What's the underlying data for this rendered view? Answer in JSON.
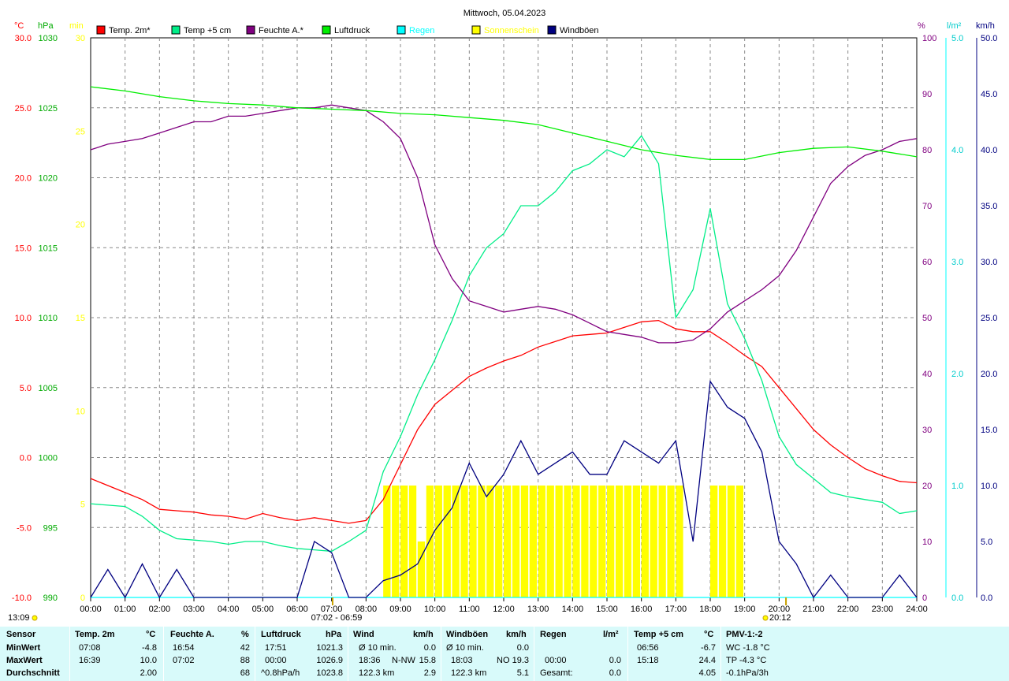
{
  "title": "Mittwoch, 05.04.2023",
  "legend": [
    {
      "label": "Temp. 2m*",
      "color": "#ff0000"
    },
    {
      "label": "Temp +5 cm",
      "color": "#00ee88"
    },
    {
      "label": "Feuchte A.*",
      "color": "#800080"
    },
    {
      "label": "Luftdruck",
      "color": "#00ee00"
    },
    {
      "label": "Regen",
      "color": "#00ffff"
    },
    {
      "label": "Sonnenschein",
      "color": "#ffff00"
    },
    {
      "label": "Windböen",
      "color": "#000080"
    }
  ],
  "axes": {
    "temp": {
      "unit": "°C",
      "color": "#ff0000",
      "ticks": [
        "30.0",
        "25.0",
        "20.0",
        "15.0",
        "10.0",
        "5.0",
        "0.0",
        "-5.0",
        "-10.0"
      ]
    },
    "pressure": {
      "unit": "hPa",
      "color": "#00aa00",
      "ticks": [
        "1030",
        "1025",
        "1020",
        "1015",
        "1010",
        "1005",
        "1000",
        "995",
        "990"
      ]
    },
    "sun": {
      "unit": "min",
      "color": "#ffff00",
      "ticks": [
        "30",
        "25",
        "20",
        "15",
        "10",
        "5",
        "0"
      ]
    },
    "humidity": {
      "unit": "%",
      "color": "#800080",
      "ticks": [
        "100",
        "90",
        "80",
        "70",
        "60",
        "50",
        "40",
        "30",
        "20",
        "10",
        "0"
      ]
    },
    "rain": {
      "unit": "l/m²",
      "color": "#00ffff",
      "ticks": [
        "5.0",
        "4.0",
        "3.0",
        "2.0",
        "1.0",
        "0.0"
      ]
    },
    "wind": {
      "unit": "km/h",
      "color": "#000080",
      "ticks": [
        "50.0",
        "45.0",
        "40.0",
        "35.0",
        "30.0",
        "25.0",
        "20.0",
        "15.0",
        "10.0",
        "5.0",
        "0.0"
      ]
    }
  },
  "x_ticks": [
    "00:00",
    "01:00",
    "02:00",
    "03:00",
    "04:00",
    "05:00",
    "06:00",
    "07:00",
    "08:00",
    "09:00",
    "10:00",
    "11:00",
    "12:00",
    "13:00",
    "14:00",
    "15:00",
    "16:00",
    "17:00",
    "18:00",
    "19:00",
    "20:00",
    "21:00",
    "22:00",
    "23:00",
    "24:00"
  ],
  "markers": {
    "day_length": "13:09",
    "sunrise_sunset": "07:02 - 06:59",
    "sunset_time": "20:12"
  },
  "chart_data": {
    "type": "line",
    "title": "Mittwoch, 05.04.2023",
    "x_unit": "hours",
    "series": [
      {
        "name": "Temp. 2m*",
        "unit": "°C",
        "ylim": [
          -10,
          30
        ],
        "color": "#ff0000",
        "x": [
          0,
          0.5,
          1,
          1.5,
          2,
          2.5,
          3,
          3.5,
          4,
          4.5,
          5,
          5.5,
          6,
          6.5,
          7,
          7.5,
          8,
          8.5,
          9,
          9.5,
          10,
          10.5,
          11,
          11.5,
          12,
          12.5,
          13,
          13.5,
          14,
          14.5,
          15,
          15.5,
          16,
          16.5,
          17,
          17.5,
          18,
          18.5,
          19,
          19.5,
          20,
          20.5,
          21,
          21.5,
          22,
          22.5,
          23,
          23.5,
          24
        ],
        "y": [
          -1.5,
          -2.0,
          -2.5,
          -3.0,
          -3.7,
          -3.8,
          -3.9,
          -4.1,
          -4.2,
          -4.4,
          -4.0,
          -4.3,
          -4.5,
          -4.3,
          -4.5,
          -4.7,
          -4.5,
          -3.0,
          -0.5,
          2.0,
          3.8,
          4.8,
          5.8,
          6.4,
          6.9,
          7.3,
          7.9,
          8.3,
          8.7,
          8.8,
          8.9,
          9.3,
          9.7,
          9.8,
          9.2,
          9.0,
          9.0,
          8.2,
          7.3,
          6.5,
          5.0,
          3.5,
          2.0,
          0.9,
          0.0,
          -0.8,
          -1.3,
          -1.7,
          -1.8
        ]
      },
      {
        "name": "Temp +5 cm",
        "unit": "°C",
        "ylim": [
          -10,
          30
        ],
        "color": "#00ee88",
        "x": [
          0,
          0.5,
          1,
          1.5,
          2,
          2.5,
          3,
          3.5,
          4,
          4.5,
          5,
          5.5,
          6,
          6.5,
          7,
          7.5,
          8,
          8.5,
          9,
          9.5,
          10,
          10.5,
          11,
          11.5,
          12,
          12.5,
          13,
          13.5,
          14,
          14.5,
          15,
          15.5,
          16,
          16.5,
          17,
          17.5,
          18,
          18.5,
          19,
          19.5,
          20,
          20.5,
          21,
          21.5,
          22,
          22.5,
          23,
          23.5,
          24
        ],
        "y": [
          -3.3,
          -3.4,
          -3.5,
          -4.2,
          -5.2,
          -5.8,
          -5.9,
          -6.0,
          -6.2,
          -6.0,
          -6.0,
          -6.3,
          -6.5,
          -6.6,
          -6.7,
          -6.0,
          -5.2,
          -1.0,
          1.5,
          4.5,
          7.0,
          9.8,
          13.0,
          15.0,
          16.0,
          18.0,
          18.0,
          19.0,
          20.5,
          21.0,
          22.0,
          21.5,
          23.0,
          21.0,
          10.0,
          12.0,
          17.8,
          11.0,
          8.5,
          5.5,
          1.5,
          -0.5,
          -1.5,
          -2.5,
          -2.8,
          -3.0,
          -3.2,
          -4.0,
          -3.8
        ]
      },
      {
        "name": "Feuchte A.*",
        "unit": "%",
        "ylim": [
          0,
          100
        ],
        "color": "#800080",
        "x": [
          0,
          0.5,
          1,
          1.5,
          2,
          2.5,
          3,
          3.5,
          4,
          4.5,
          5,
          5.5,
          6,
          6.5,
          7,
          7.5,
          8,
          8.5,
          9,
          9.5,
          10,
          10.5,
          11,
          11.5,
          12,
          12.5,
          13,
          13.5,
          14,
          14.5,
          15,
          15.5,
          16,
          16.5,
          17,
          17.5,
          18,
          18.5,
          19,
          19.5,
          20,
          20.5,
          21,
          21.5,
          22,
          22.5,
          23,
          23.5,
          24
        ],
        "y": [
          80,
          81,
          81.5,
          82,
          83,
          84,
          85,
          85,
          86,
          86,
          86.5,
          87,
          87.5,
          87.5,
          88,
          87.5,
          87,
          85,
          82,
          75,
          63,
          57,
          53,
          52,
          51,
          51.5,
          52,
          51.5,
          50.5,
          49,
          47.5,
          47,
          46.5,
          45.5,
          45.5,
          46,
          48,
          51,
          53,
          55,
          57.5,
          62,
          68,
          74,
          77,
          79,
          80,
          81.5,
          82
        ]
      },
      {
        "name": "Luftdruck",
        "unit": "hPa",
        "ylim": [
          990,
          1030
        ],
        "color": "#00ee00",
        "x": [
          0,
          1,
          2,
          3,
          4,
          5,
          6,
          7,
          8,
          9,
          10,
          11,
          12,
          13,
          14,
          15,
          16,
          17,
          18,
          19,
          20,
          21,
          22,
          23,
          24
        ],
        "y": [
          1026.5,
          1026.2,
          1025.8,
          1025.5,
          1025.3,
          1025.2,
          1025.0,
          1024.9,
          1024.8,
          1024.6,
          1024.5,
          1024.3,
          1024.1,
          1023.8,
          1023.2,
          1022.6,
          1022.0,
          1021.6,
          1021.3,
          1021.3,
          1021.8,
          1022.1,
          1022.2,
          1021.9,
          1021.5
        ]
      },
      {
        "name": "Regen",
        "unit": "l/m²",
        "ylim": [
          0,
          5
        ],
        "color": "#00ffff",
        "x": [
          0,
          24
        ],
        "y": [
          0,
          0
        ]
      },
      {
        "name": "Windböen",
        "unit": "km/h",
        "ylim": [
          0,
          50
        ],
        "color": "#000080",
        "x": [
          0,
          0.5,
          1,
          1.5,
          2,
          2.5,
          3,
          3.5,
          4,
          4.5,
          5,
          5.5,
          6,
          6.5,
          7,
          7.5,
          8,
          8.5,
          9,
          9.5,
          10,
          10.5,
          11,
          11.5,
          12,
          12.5,
          13,
          13.5,
          14,
          14.5,
          15,
          15.5,
          16,
          16.5,
          17,
          17.5,
          18,
          18.5,
          19,
          19.5,
          20,
          20.5,
          21,
          21.5,
          22,
          22.5,
          23,
          23.5,
          24
        ],
        "y": [
          0,
          2.5,
          0,
          3,
          0,
          2.5,
          0,
          0,
          0,
          0,
          0,
          0,
          0,
          5,
          4,
          0,
          0,
          1.5,
          2,
          3,
          6,
          8,
          12,
          9,
          11,
          14,
          11,
          12,
          13,
          11,
          11,
          14,
          13,
          12,
          14,
          5,
          19.3,
          17,
          16,
          13,
          5,
          3,
          0,
          2,
          0,
          0,
          0,
          2,
          0
        ]
      },
      {
        "name": "Sonnenschein",
        "unit": "min",
        "type": "bar",
        "ylim": [
          0,
          30
        ],
        "color": "#ffff00",
        "x": [
          8.5,
          8.75,
          9,
          9.25,
          9.5,
          9.75,
          10,
          10.25,
          10.5,
          10.75,
          11,
          11.25,
          11.5,
          11.75,
          12,
          12.25,
          12.5,
          12.75,
          13,
          13.25,
          13.5,
          13.75,
          14,
          14.25,
          14.5,
          14.75,
          15,
          15.25,
          15.5,
          15.75,
          16,
          16.25,
          16.5,
          16.75,
          17,
          17.25,
          17.5,
          17.75,
          18,
          18.25,
          18.5,
          18.75
        ],
        "y": [
          6,
          6,
          6,
          6,
          3,
          6,
          6,
          6,
          6,
          6,
          6,
          6,
          6,
          6,
          6,
          6,
          6,
          6,
          6,
          6,
          6,
          6,
          6,
          6,
          6,
          6,
          6,
          6,
          6,
          6,
          6,
          6,
          6,
          6,
          6,
          0,
          0,
          0,
          6,
          6,
          6,
          6
        ]
      }
    ]
  },
  "stats": {
    "header": {
      "sensor": "Sensor",
      "temp": "Temp. 2m",
      "temp_unit": "°C",
      "hum": "Feuchte A.",
      "hum_unit": "%",
      "press": "Luftdruck",
      "press_unit": "hPa",
      "wind": "Wind",
      "wind_unit": "km/h",
      "gust": "Windböen",
      "gust_unit": "km/h",
      "rain": "Regen",
      "rain_unit": "l/m²",
      "t5": "Temp +5 cm",
      "t5_unit": "°C",
      "pmv": "PMV-1:-2"
    },
    "rows": [
      {
        "label": "MinWert",
        "temp_t": "07:08",
        "temp_v": "-4.8",
        "hum_t": "16:54",
        "hum_v": "42",
        "press_t": "17:51",
        "press_v": "1021.3",
        "wind_t": "Ø 10 min.",
        "wind_v": "0.0",
        "gust_t": "Ø 10 min.",
        "gust_v": "0.0",
        "rain_t": "",
        "rain_v": "",
        "t5_t": "06:56",
        "t5_v": "-6.7",
        "pmv": "WC -1.8 °C"
      },
      {
        "label": "MaxWert",
        "temp_t": "16:39",
        "temp_v": "10.0",
        "hum_t": "07:02",
        "hum_v": "88",
        "press_t": "00:00",
        "press_v": "1026.9",
        "wind_t": "18:36",
        "wind_dir": "N-NW",
        "wind_v": "15.8",
        "gust_t": "18:03",
        "gust_dir": "NO",
        "gust_v": "19.3",
        "rain_t": "00:00",
        "rain_v": "0.0",
        "t5_t": "15:18",
        "t5_v": "24.4",
        "pmv": "TP -4.3 °C"
      },
      {
        "label": "Durchschnitt",
        "temp_t": "",
        "temp_v": "2.00",
        "hum_t": "",
        "hum_v": "68",
        "press_t": "^0.8hPa/h",
        "press_v": "1023.8",
        "wind_t": "122.3 km",
        "wind_v": "2.9",
        "gust_t": "122.3 km",
        "gust_v": "5.1",
        "rain_t": "Gesamt:",
        "rain_v": "0.0",
        "t5_t": "",
        "t5_v": "4.05",
        "pmv": "-0.1hPa/3h"
      }
    ]
  }
}
